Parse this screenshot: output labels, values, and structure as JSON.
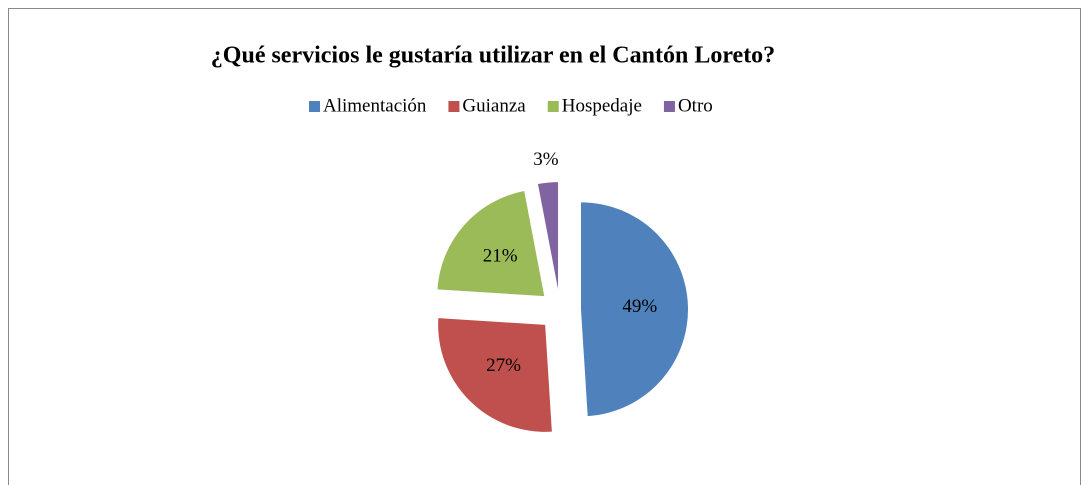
{
  "chart_data": {
    "type": "pie",
    "title": "¿Qué servicios le gustaría utilizar en el Cantón Loreto?",
    "categories": [
      "Alimentación",
      "Guianza",
      "Hospedaje",
      "Otro"
    ],
    "values": [
      49,
      27,
      21,
      3
    ],
    "value_labels": [
      "49%",
      "27%",
      "21%",
      "3%"
    ],
    "colors": [
      "#4f81bd",
      "#c0504d",
      "#9bbb59",
      "#8064a2"
    ],
    "legend": "top"
  }
}
